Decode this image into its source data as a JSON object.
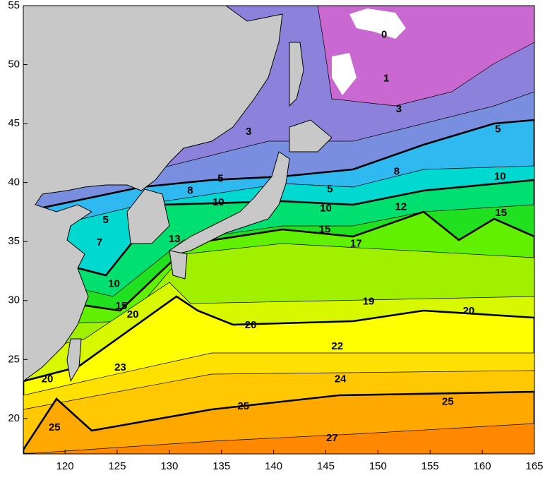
{
  "map": {
    "xlim": [
      116,
      165
    ],
    "ylim": [
      17,
      55
    ],
    "xticks": [
      120,
      125,
      130,
      135,
      140,
      145,
      150,
      155,
      160,
      165
    ],
    "yticks": [
      20,
      25,
      30,
      35,
      40,
      45,
      50,
      55
    ],
    "contour_labels": [
      {
        "value": 0,
        "lon": 150.6,
        "lat": 52.5
      },
      {
        "value": 1,
        "lon": 150.8,
        "lat": 48.8
      },
      {
        "value": 3,
        "lon": 152.0,
        "lat": 46.2
      },
      {
        "value": 3,
        "lon": 137.6,
        "lat": 44.3
      },
      {
        "value": 5,
        "lon": 161.5,
        "lat": 44.5
      },
      {
        "value": 5,
        "lon": 134.9,
        "lat": 40.3
      },
      {
        "value": 5,
        "lon": 145.4,
        "lat": 39.4
      },
      {
        "value": 5,
        "lon": 123.9,
        "lat": 36.8
      },
      {
        "value": 7,
        "lon": 123.3,
        "lat": 34.9
      },
      {
        "value": 8,
        "lon": 151.8,
        "lat": 40.9
      },
      {
        "value": 8,
        "lon": 132.0,
        "lat": 39.3
      },
      {
        "value": 10,
        "lon": 161.7,
        "lat": 40.5
      },
      {
        "value": 10,
        "lon": 134.7,
        "lat": 38.3
      },
      {
        "value": 10,
        "lon": 145.0,
        "lat": 37.8
      },
      {
        "value": 10,
        "lon": 124.7,
        "lat": 31.4
      },
      {
        "value": 12,
        "lon": 152.2,
        "lat": 37.9
      },
      {
        "value": 13,
        "lon": 130.5,
        "lat": 35.2
      },
      {
        "value": 15,
        "lon": 161.8,
        "lat": 37.4
      },
      {
        "value": 15,
        "lon": 144.9,
        "lat": 36.0
      },
      {
        "value": 15,
        "lon": 125.4,
        "lat": 29.5
      },
      {
        "value": 17,
        "lon": 147.9,
        "lat": 34.8
      },
      {
        "value": 19,
        "lon": 149.1,
        "lat": 29.9
      },
      {
        "value": 20,
        "lon": 126.5,
        "lat": 28.8
      },
      {
        "value": 20,
        "lon": 158.7,
        "lat": 29.1
      },
      {
        "value": 20,
        "lon": 137.8,
        "lat": 27.9
      },
      {
        "value": 20,
        "lon": 118.3,
        "lat": 23.3
      },
      {
        "value": 22,
        "lon": 146.1,
        "lat": 26.1
      },
      {
        "value": 23,
        "lon": 125.3,
        "lat": 24.3
      },
      {
        "value": 24,
        "lon": 146.4,
        "lat": 23.3
      },
      {
        "value": 25,
        "lon": 137.1,
        "lat": 21.0
      },
      {
        "value": 25,
        "lon": 156.7,
        "lat": 21.4
      },
      {
        "value": 25,
        "lon": 119.0,
        "lat": 19.2
      },
      {
        "value": 27,
        "lon": 145.6,
        "lat": 18.3
      }
    ]
  }
}
